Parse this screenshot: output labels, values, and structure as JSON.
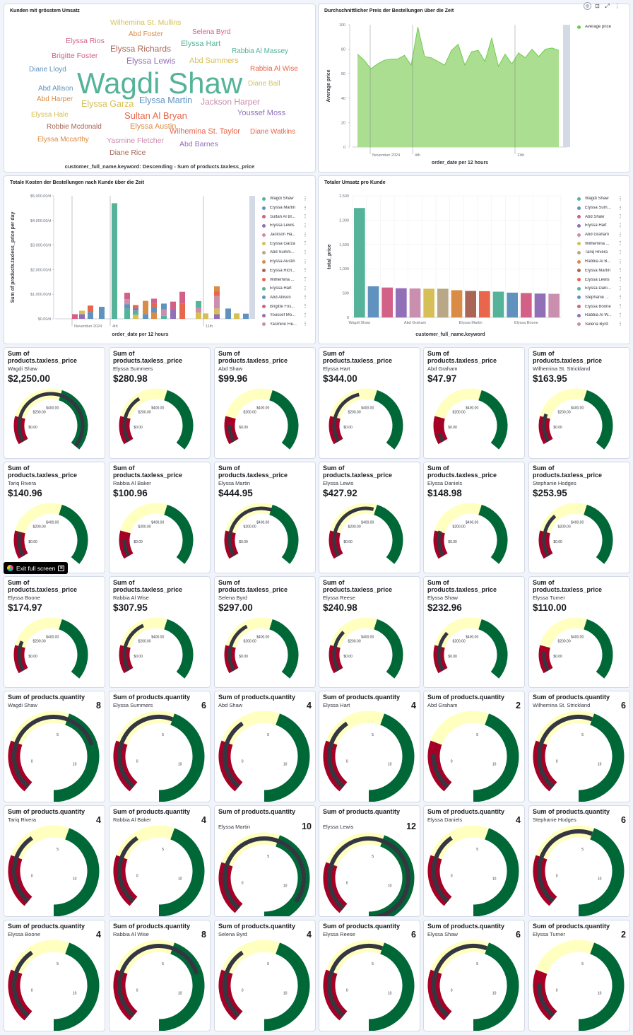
{
  "toolbar": {
    "icons": [
      "compass-icon",
      "inspect-icon",
      "fullscreen-icon",
      "more-icon"
    ]
  },
  "exit_fullscreen": {
    "label": "Exit full screen",
    "key": "⌘"
  },
  "wordcloud": {
    "title": "Kunden mit grösstem Umsatz",
    "footer": "customer_full_name.keyword: Descending - Sum of products.taxless_price",
    "words": [
      {
        "text": "Wilhemina St. Mullins",
        "color": "#d6bf57"
      },
      {
        "text": "Abd Foster",
        "color": "#da8b45"
      },
      {
        "text": "Selena Byrd",
        "color": "#d36086"
      },
      {
        "text": "Elyssa Rios",
        "color": "#d36086"
      },
      {
        "text": "Elyssa Richards",
        "color": "#aa6556"
      },
      {
        "text": "Elyssa Hart",
        "color": "#54b399"
      },
      {
        "text": "Rabbia Al Massey",
        "color": "#54b399"
      },
      {
        "text": "Brigitte Foster",
        "color": "#d36086"
      },
      {
        "text": "Elyssa Lewis",
        "color": "#9170b8"
      },
      {
        "text": "Abd Summers",
        "color": "#d6bf57"
      },
      {
        "text": "Diane Lloyd",
        "color": "#6092c0"
      },
      {
        "text": "Rabbia Al Wise",
        "color": "#e7664c"
      },
      {
        "text": "Wagdi Shaw",
        "color": "#54b399"
      },
      {
        "text": "Diane Ball",
        "color": "#d6bf57"
      },
      {
        "text": "Abd Allison",
        "color": "#6092c0"
      },
      {
        "text": "Elyssa Martin",
        "color": "#6092c0"
      },
      {
        "text": "Abd Harper",
        "color": "#da8b45"
      },
      {
        "text": "Jackson Harper",
        "color": "#ca8eae"
      },
      {
        "text": "Elyssa Garza",
        "color": "#d6bf57"
      },
      {
        "text": "Youssef Moss",
        "color": "#9170b8"
      },
      {
        "text": "Elyssa Hale",
        "color": "#d6bf57"
      },
      {
        "text": "Sultan Al Bryan",
        "color": "#e7664c"
      },
      {
        "text": "Robbie Mcdonald",
        "color": "#aa6556"
      },
      {
        "text": "Elyssa Austin",
        "color": "#da8b45"
      },
      {
        "text": "Wilhemina St. Taylor",
        "color": "#e7664c"
      },
      {
        "text": "Diane Watkins",
        "color": "#e7664c"
      },
      {
        "text": "Elyssa Mccarthy",
        "color": "#da8b45"
      },
      {
        "text": "Yasmine Fletcher",
        "color": "#ca8eae"
      },
      {
        "text": "Abd Barnes",
        "color": "#9170b8"
      },
      {
        "text": "Diane Rice",
        "color": "#aa6556"
      }
    ]
  },
  "area_chart": {
    "title": "Durchschnittlicher Preis der Bestellungen über die Zeit",
    "chart_data": {
      "type": "area",
      "ylabel": "Average price",
      "xlabel": "order_date per 12 hours",
      "ylim": [
        0,
        100
      ],
      "yticks": [
        "0",
        "20",
        "40",
        "60",
        "80",
        "100"
      ],
      "xticks": [
        "November 2024",
        "4th",
        "11th"
      ],
      "series": [
        {
          "name": "Average price",
          "color": "#6dcc4d",
          "values": [
            76,
            71,
            64,
            68,
            71,
            72,
            72,
            75,
            67,
            98,
            74,
            73,
            70,
            67,
            79,
            84,
            67,
            78,
            79,
            70,
            89,
            66,
            76,
            68,
            77,
            73,
            80,
            74,
            80,
            81,
            79
          ]
        }
      ]
    },
    "legend": [
      {
        "label": "Average price",
        "color": "#6dcc4d"
      }
    ]
  },
  "stacked_chart": {
    "title": "Totale Kosten der Bestellungen nach Kunde über die Zeit",
    "chart_data": {
      "type": "bar",
      "ylabel": "Sum of products.taxless_price per day",
      "xlabel": "order_date per 12 hours",
      "yticks": [
        "$0.00/d",
        "$1,000.00/d",
        "$2,000.00/d",
        "$3,000.00/d",
        "$4,000.00/d",
        "$5,000.00/d"
      ],
      "ylim": [
        0,
        5000
      ],
      "xticks": [
        "November 2024",
        "4th",
        "11th"
      ],
      "bars": [
        [
          {
            "c": "#d36086",
            "v": 190
          }
        ],
        [
          {
            "c": "#9170b8",
            "v": 190
          },
          {
            "c": "#d6bf57",
            "v": 140
          }
        ],
        [
          {
            "c": "#6092c0",
            "v": 280
          },
          {
            "c": "#e7664c",
            "v": 260
          }
        ],
        [
          {
            "c": "#6092c0",
            "v": 490
          }
        ],
        [
          {
            "c": "#54b399",
            "v": 4700
          }
        ],
        [
          {
            "c": "#54b399",
            "v": 420
          },
          {
            "c": "#6092c0",
            "v": 170
          },
          {
            "c": "#ca8eae",
            "v": 210
          },
          {
            "c": "#d36086",
            "v": 260
          }
        ],
        [
          {
            "c": "#d6bf57",
            "v": 170
          },
          {
            "c": "#54b399",
            "v": 170
          },
          {
            "c": "#9170b8",
            "v": 90
          },
          {
            "c": "#e7664c",
            "v": 130
          }
        ],
        [
          {
            "c": "#6092c0",
            "v": 190
          },
          {
            "c": "#da8b45",
            "v": 540
          }
        ],
        [
          {
            "c": "#da8b45",
            "v": 260
          },
          {
            "c": "#6092c0",
            "v": 230
          },
          {
            "c": "#e7664c",
            "v": 130
          },
          {
            "c": "#d36086",
            "v": 200
          }
        ],
        [
          {
            "c": "#54b399",
            "v": 120
          },
          {
            "c": "#ca8eae",
            "v": 260
          },
          {
            "c": "#6092c0",
            "v": 240
          }
        ],
        [
          {
            "c": "#9170b8",
            "v": 400
          },
          {
            "c": "#d36086",
            "v": 300
          }
        ],
        [
          {
            "c": "#e7664c",
            "v": 610
          },
          {
            "c": "#d36086",
            "v": 490
          }
        ],
        [
          {
            "c": "#d6bf57",
            "v": 260
          },
          {
            "c": "#ca8eae",
            "v": 200
          },
          {
            "c": "#54b399",
            "v": 260
          }
        ],
        [
          {
            "c": "#d6bf57",
            "v": 220
          }
        ],
        [
          {
            "c": "#9170b8",
            "v": 190
          },
          {
            "c": "#d6bf57",
            "v": 230
          },
          {
            "c": "#ca8eae",
            "v": 510
          },
          {
            "c": "#e7664c",
            "v": 190
          },
          {
            "c": "#da8b45",
            "v": 200
          }
        ],
        [
          {
            "c": "#6092c0",
            "v": 420
          }
        ],
        [
          {
            "c": "#d6bf57",
            "v": 220
          }
        ],
        [
          {
            "c": "#6092c0",
            "v": 210
          }
        ]
      ]
    },
    "legend": [
      {
        "label": "Wagdi Shaw",
        "color": "#54b399"
      },
      {
        "label": "Elyssa Martin",
        "color": "#6092c0"
      },
      {
        "label": "Sultan Al Br...",
        "color": "#d36086"
      },
      {
        "label": "Elyssa Lewis",
        "color": "#9170b8"
      },
      {
        "label": "Jackson Ha...",
        "color": "#ca8eae"
      },
      {
        "label": "Elyssa Garza",
        "color": "#d6bf57"
      },
      {
        "label": "Abd Summ...",
        "color": "#b9a888"
      },
      {
        "label": "Elyssa Austin",
        "color": "#da8b45"
      },
      {
        "label": "Elyssa Rich...",
        "color": "#aa6556"
      },
      {
        "label": "Wilhemina ...",
        "color": "#e7664c"
      },
      {
        "label": "Elyssa Hart",
        "color": "#54b399"
      },
      {
        "label": "Abd Allison",
        "color": "#6092c0"
      },
      {
        "label": "Brigitte Fos...",
        "color": "#d36086"
      },
      {
        "label": "Youssef Mo...",
        "color": "#9170b8"
      },
      {
        "label": "Yasmine Fle...",
        "color": "#ca8eae"
      }
    ]
  },
  "bar_chart": {
    "title": "Totaler Umsatz pro Kunde",
    "chart_data": {
      "type": "bar",
      "ylabel": "total_price",
      "xlabel": "customer_full_name.keyword",
      "ylim": [
        0,
        2500
      ],
      "yticks": [
        "0",
        "500",
        "1,000",
        "1,500",
        "2,000",
        "2,500"
      ],
      "xticks": [
        {
          "label": "Wagdi Shaw",
          "index": 0
        },
        {
          "label": "Abd Graham",
          "index": 4
        },
        {
          "label": "Elyssa Martin",
          "index": 8
        },
        {
          "label": "Elyssa Boone",
          "index": 12
        }
      ],
      "values": [
        2250,
        640,
        615,
        600,
        595,
        590,
        590,
        560,
        545,
        540,
        530,
        510,
        500,
        490,
        485
      ],
      "colors": [
        "#54b399",
        "#6092c0",
        "#d36086",
        "#9170b8",
        "#ca8eae",
        "#d6bf57",
        "#b9a888",
        "#da8b45",
        "#aa6556",
        "#e7664c",
        "#54b399",
        "#6092c0",
        "#d36086",
        "#9170b8",
        "#ca8eae"
      ]
    },
    "legend": [
      {
        "label": "Wagdi Shaw",
        "color": "#54b399"
      },
      {
        "label": "Elyssa Sum...",
        "color": "#6092c0"
      },
      {
        "label": "Abd Shaw",
        "color": "#d36086"
      },
      {
        "label": "Elyssa Hart",
        "color": "#9170b8"
      },
      {
        "label": "Abd Graham",
        "color": "#ca8eae"
      },
      {
        "label": "Wilhemina ...",
        "color": "#d6bf57"
      },
      {
        "label": "Tariq Rivera",
        "color": "#b9a888"
      },
      {
        "label": "Rabbia Al B...",
        "color": "#da8b45"
      },
      {
        "label": "Elyssa Martin",
        "color": "#aa6556"
      },
      {
        "label": "Elyssa Lewis",
        "color": "#e7664c"
      },
      {
        "label": "Elyssa Dani...",
        "color": "#54b399"
      },
      {
        "label": "Stephanie ...",
        "color": "#6092c0"
      },
      {
        "label": "Elyssa Boone",
        "color": "#d36086"
      },
      {
        "label": "Rabbia Al W...",
        "color": "#9170b8"
      },
      {
        "label": "Selena Byrd",
        "color": "#ca8eae"
      }
    ]
  },
  "price_gauges": {
    "title": "Sum of products.taxless_price",
    "ticks": [
      "$0.00",
      "$200.00",
      "$400.00"
    ],
    "max": 800,
    "items": [
      {
        "name": "Wagdi Shaw",
        "value": "$2,250.00",
        "amount": 2250
      },
      {
        "name": "Elyssa Summers",
        "value": "$280.98",
        "amount": 280.98
      },
      {
        "name": "Abd Shaw",
        "value": "$99.96",
        "amount": 99.96
      },
      {
        "name": "Elyssa Hart",
        "value": "$344.00",
        "amount": 344
      },
      {
        "name": "Abd Graham",
        "value": "$47.97",
        "amount": 47.97
      },
      {
        "name": "Wilhemina St. Strickland",
        "value": "$163.95",
        "amount": 163.95
      },
      {
        "name": "Tariq Rivera",
        "value": "$140.96",
        "amount": 140.96
      },
      {
        "name": "Rabbia Al Baker",
        "value": "$100.96",
        "amount": 100.96
      },
      {
        "name": "Elyssa Martin",
        "value": "$444.95",
        "amount": 444.95
      },
      {
        "name": "Elyssa Lewis",
        "value": "$427.92",
        "amount": 427.92
      },
      {
        "name": "Elyssa Daniels",
        "value": "$148.98",
        "amount": 148.98
      },
      {
        "name": "Stephanie Hodges",
        "value": "$253.95",
        "amount": 253.95
      },
      {
        "name": "Elyssa Boone",
        "value": "$174.97",
        "amount": 174.97
      },
      {
        "name": "Rabbia Al Wise",
        "value": "$307.95",
        "amount": 307.95
      },
      {
        "name": "Selena Byrd",
        "value": "$297.00",
        "amount": 297
      },
      {
        "name": "Elyssa Reese",
        "value": "$240.98",
        "amount": 240.98
      },
      {
        "name": "Elyssa Shaw",
        "value": "$232.96",
        "amount": 232.96
      },
      {
        "name": "Elyssa Turner",
        "value": "$110.00",
        "amount": 110
      }
    ]
  },
  "qty_gauges": {
    "title": "Sum of products.quantity",
    "ticks": [
      "0",
      "5",
      "10"
    ],
    "max": 12,
    "items": [
      {
        "name": "Wagdi Shaw",
        "value": "8",
        "amount": 8
      },
      {
        "name": "Elyssa Summers",
        "value": "6",
        "amount": 6
      },
      {
        "name": "Abd Shaw",
        "value": "4",
        "amount": 4
      },
      {
        "name": "Elyssa Hart",
        "value": "4",
        "amount": 4
      },
      {
        "name": "Abd Graham",
        "value": "2",
        "amount": 2
      },
      {
        "name": "Wilhemina St. Strickland",
        "value": "6",
        "amount": 6
      },
      {
        "name": "Tariq Rivera",
        "value": "4",
        "amount": 4
      },
      {
        "name": "Rabbia Al Baker",
        "value": "4",
        "amount": 4
      },
      {
        "name": "Elyssa Martin",
        "value": "10",
        "amount": 10
      },
      {
        "name": "Elyssa Lewis",
        "value": "12",
        "amount": 12
      },
      {
        "name": "Elyssa Daniels",
        "value": "4",
        "amount": 4
      },
      {
        "name": "Stephanie Hodges",
        "value": "6",
        "amount": 6
      },
      {
        "name": "Elyssa Boone",
        "value": "4",
        "amount": 4
      },
      {
        "name": "Rabbia Al Wise",
        "value": "8",
        "amount": 8
      },
      {
        "name": "Selena Byrd",
        "value": "4",
        "amount": 4
      },
      {
        "name": "Elyssa Reese",
        "value": "6",
        "amount": 6
      },
      {
        "name": "Elyssa Shaw",
        "value": "6",
        "amount": 6
      },
      {
        "name": "Elyssa Turner",
        "value": "2",
        "amount": 2
      }
    ]
  }
}
